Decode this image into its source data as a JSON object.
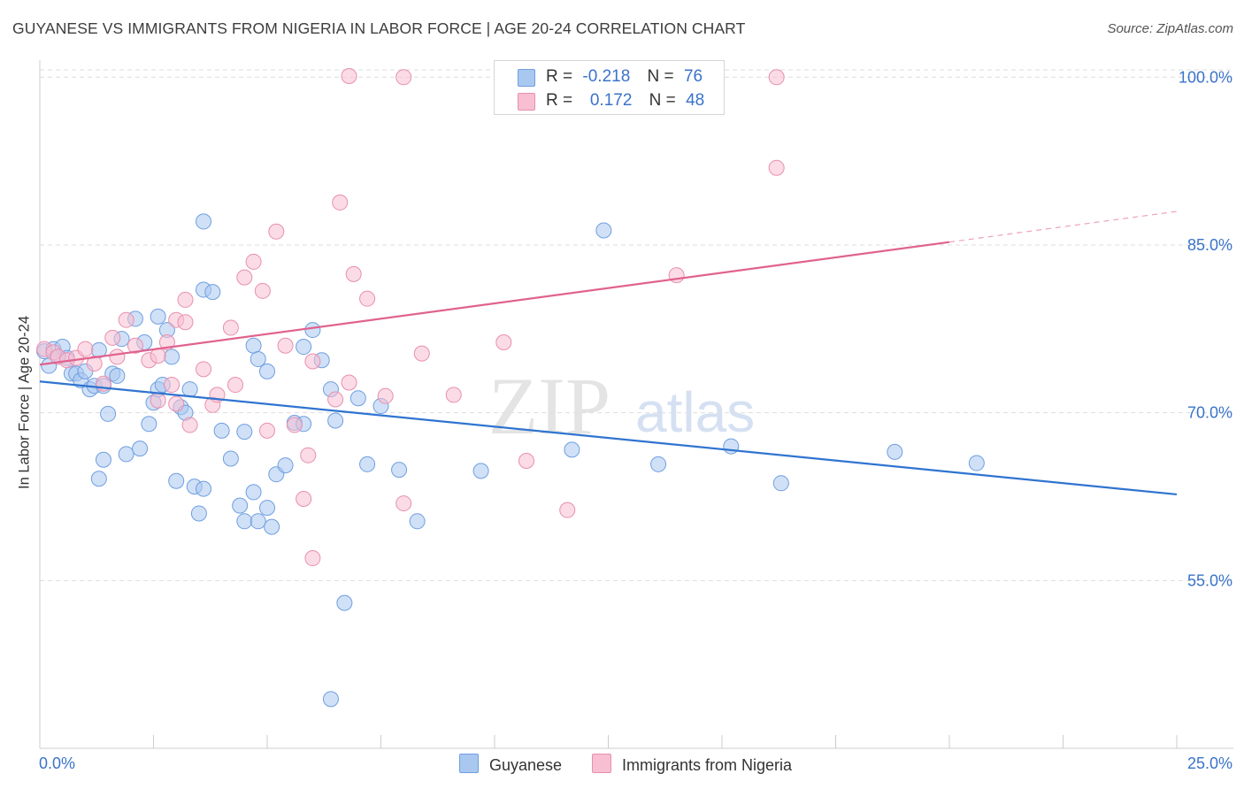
{
  "title": "GUYANESE VS IMMIGRANTS FROM NIGERIA IN LABOR FORCE | AGE 20-24 CORRELATION CHART",
  "source": "Source: ZipAtlas.com",
  "watermark": {
    "zip": "ZIP",
    "atlas": "atlas"
  },
  "legend_top": [
    {
      "r_label": "R =",
      "r_value": "-0.218",
      "n_label": "N =",
      "n_value": "76",
      "color": "#a9c8f0",
      "border": "#6f9ee0"
    },
    {
      "r_label": "R =",
      "r_value": "0.172",
      "n_label": "N =",
      "n_value": "48",
      "color": "#f7bfd1",
      "border": "#e88fae"
    }
  ],
  "chart_data": {
    "type": "scatter",
    "title": "GUYANESE VS IMMIGRANTS FROM NIGERIA IN LABOR FORCE | AGE 20-24 CORRELATION CHART",
    "xlabel": "",
    "ylabel": "In Labor Force | Age 20-24",
    "xlim": [
      0,
      25
    ],
    "ylim": [
      40,
      102
    ],
    "x_tick_labels": [
      "0.0%",
      "25.0%"
    ],
    "y_ticks": [
      55,
      70,
      85,
      100
    ],
    "y_tick_labels": [
      "55.0%",
      "70.0%",
      "85.0%",
      "100.0%"
    ],
    "grid": true,
    "legend_position": "bottom",
    "series": [
      {
        "name": "Guyanese",
        "color": "#6f9ee0",
        "fill": "#a9c8f0",
        "line_color": "#2f74d0",
        "trend": {
          "x": [
            0,
            25
          ],
          "y": [
            72.8,
            62.7
          ],
          "solid_until": 25
        },
        "points": [
          [
            0.1,
            75.5
          ],
          [
            0.2,
            74.2
          ],
          [
            0.3,
            75.7
          ],
          [
            0.4,
            75.0
          ],
          [
            0.5,
            75.9
          ],
          [
            0.6,
            74.9
          ],
          [
            0.7,
            73.5
          ],
          [
            0.8,
            73.5
          ],
          [
            0.9,
            72.9
          ],
          [
            1.0,
            73.7
          ],
          [
            1.1,
            72.1
          ],
          [
            1.2,
            72.4
          ],
          [
            1.3,
            75.6
          ],
          [
            1.4,
            72.4
          ],
          [
            1.5,
            69.9
          ],
          [
            1.6,
            73.5
          ],
          [
            1.7,
            73.3
          ],
          [
            1.8,
            76.6
          ],
          [
            1.4,
            65.8
          ],
          [
            1.3,
            64.1
          ],
          [
            1.9,
            66.3
          ],
          [
            2.1,
            78.4
          ],
          [
            2.3,
            76.3
          ],
          [
            2.4,
            69.0
          ],
          [
            2.5,
            70.9
          ],
          [
            2.6,
            72.1
          ],
          [
            2.7,
            72.5
          ],
          [
            2.8,
            77.4
          ],
          [
            2.9,
            75.0
          ],
          [
            2.2,
            66.8
          ],
          [
            2.6,
            78.6
          ],
          [
            3.0,
            63.9
          ],
          [
            3.1,
            70.5
          ],
          [
            3.2,
            70.0
          ],
          [
            3.3,
            72.1
          ],
          [
            3.4,
            63.4
          ],
          [
            3.5,
            61.0
          ],
          [
            3.6,
            63.2
          ],
          [
            3.6,
            81.0
          ],
          [
            3.8,
            80.8
          ],
          [
            3.6,
            87.1
          ],
          [
            4.0,
            68.4
          ],
          [
            4.2,
            65.9
          ],
          [
            4.4,
            61.7
          ],
          [
            4.5,
            60.3
          ],
          [
            4.5,
            68.3
          ],
          [
            4.7,
            62.9
          ],
          [
            4.8,
            60.3
          ],
          [
            4.7,
            76.0
          ],
          [
            4.8,
            74.8
          ],
          [
            5.0,
            61.5
          ],
          [
            5.1,
            59.8
          ],
          [
            5.0,
            73.7
          ],
          [
            5.2,
            64.5
          ],
          [
            5.4,
            65.3
          ],
          [
            5.6,
            69.1
          ],
          [
            5.8,
            75.9
          ],
          [
            5.8,
            69.0
          ],
          [
            6.0,
            77.4
          ],
          [
            6.2,
            74.7
          ],
          [
            6.4,
            72.1
          ],
          [
            6.5,
            69.3
          ],
          [
            6.7,
            53.0
          ],
          [
            6.4,
            44.4
          ],
          [
            7.0,
            71.3
          ],
          [
            7.2,
            65.4
          ],
          [
            7.5,
            70.6
          ],
          [
            7.9,
            64.9
          ],
          [
            8.3,
            60.3
          ],
          [
            9.7,
            64.8
          ],
          [
            11.7,
            66.7
          ],
          [
            12.4,
            86.3
          ],
          [
            13.6,
            65.4
          ],
          [
            15.2,
            67.0
          ],
          [
            16.3,
            63.7
          ],
          [
            18.8,
            66.5
          ],
          [
            20.6,
            65.5
          ]
        ]
      },
      {
        "name": "Immigrants from Nigeria",
        "color": "#e88fae",
        "fill": "#f7bfd1",
        "line_color": "#e0628f",
        "trend": {
          "x": [
            0,
            25
          ],
          "y": [
            74.3,
            88.0
          ],
          "solid_until": 20
        },
        "points": [
          [
            0.1,
            75.7
          ],
          [
            0.3,
            75.4
          ],
          [
            0.4,
            75.0
          ],
          [
            0.6,
            74.7
          ],
          [
            0.8,
            74.9
          ],
          [
            1.0,
            75.7
          ],
          [
            1.2,
            74.4
          ],
          [
            1.4,
            72.6
          ],
          [
            1.6,
            76.7
          ],
          [
            1.7,
            75.0
          ],
          [
            1.9,
            78.3
          ],
          [
            2.1,
            76.0
          ],
          [
            2.4,
            74.7
          ],
          [
            2.6,
            75.1
          ],
          [
            2.6,
            71.1
          ],
          [
            2.8,
            76.3
          ],
          [
            3.0,
            78.3
          ],
          [
            2.9,
            72.5
          ],
          [
            3.0,
            70.8
          ],
          [
            3.2,
            78.1
          ],
          [
            3.2,
            80.1
          ],
          [
            3.3,
            68.9
          ],
          [
            3.6,
            73.9
          ],
          [
            3.8,
            70.7
          ],
          [
            3.9,
            71.6
          ],
          [
            4.2,
            77.6
          ],
          [
            4.3,
            72.5
          ],
          [
            4.5,
            82.1
          ],
          [
            4.7,
            83.5
          ],
          [
            4.9,
            80.9
          ],
          [
            5.0,
            68.4
          ],
          [
            5.2,
            86.2
          ],
          [
            5.4,
            76.0
          ],
          [
            5.6,
            68.9
          ],
          [
            5.8,
            62.3
          ],
          [
            5.9,
            66.2
          ],
          [
            6.0,
            74.6
          ],
          [
            6.0,
            57.0
          ],
          [
            6.5,
            71.2
          ],
          [
            6.8,
            72.7
          ],
          [
            6.9,
            82.4
          ],
          [
            7.2,
            80.2
          ],
          [
            7.6,
            71.5
          ],
          [
            8.0,
            61.9
          ],
          [
            8.4,
            75.3
          ],
          [
            9.1,
            71.6
          ],
          [
            10.2,
            76.3
          ],
          [
            10.7,
            65.7
          ],
          [
            11.6,
            61.3
          ],
          [
            14.0,
            82.3
          ],
          [
            16.2,
            91.9
          ],
          [
            6.6,
            88.8
          ],
          [
            6.8,
            100.1
          ],
          [
            8.0,
            100.0
          ],
          [
            12.6,
            99.6
          ],
          [
            16.2,
            100.0
          ]
        ]
      }
    ]
  },
  "bottom_legend": [
    {
      "label": "Guyanese",
      "color": "#a9c8f0",
      "border": "#6f9ee0"
    },
    {
      "label": "Immigrants from Nigeria",
      "color": "#f7bfd1",
      "border": "#e88fae"
    }
  ]
}
